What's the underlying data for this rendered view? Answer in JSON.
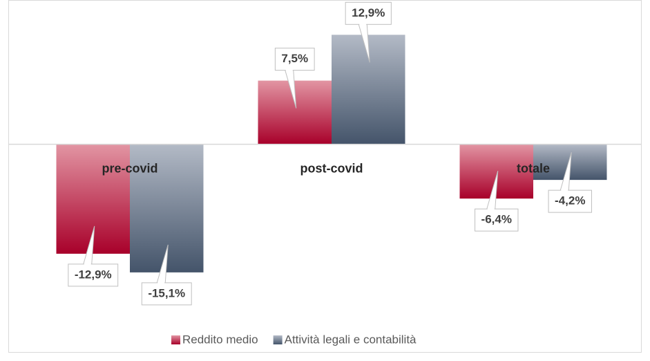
{
  "chart_data": {
    "type": "bar",
    "categories": [
      "pre-covid",
      "post-covid",
      "totale"
    ],
    "series": [
      {
        "name": "Reddito medio",
        "color": "#c0143c",
        "values": [
          -12.9,
          7.5,
          -6.4
        ],
        "value_labels": [
          "-12,9%",
          "7,5%",
          "-6,4%"
        ]
      },
      {
        "name": "Attività legali e contabilità",
        "color": "#5a6a80",
        "values": [
          -15.1,
          12.9,
          -4.2
        ],
        "value_labels": [
          "-15,1%",
          "12,9%",
          "-4,2%"
        ]
      }
    ],
    "ylim": [
      -20,
      17
    ],
    "grid": false,
    "legend": "bottom"
  }
}
